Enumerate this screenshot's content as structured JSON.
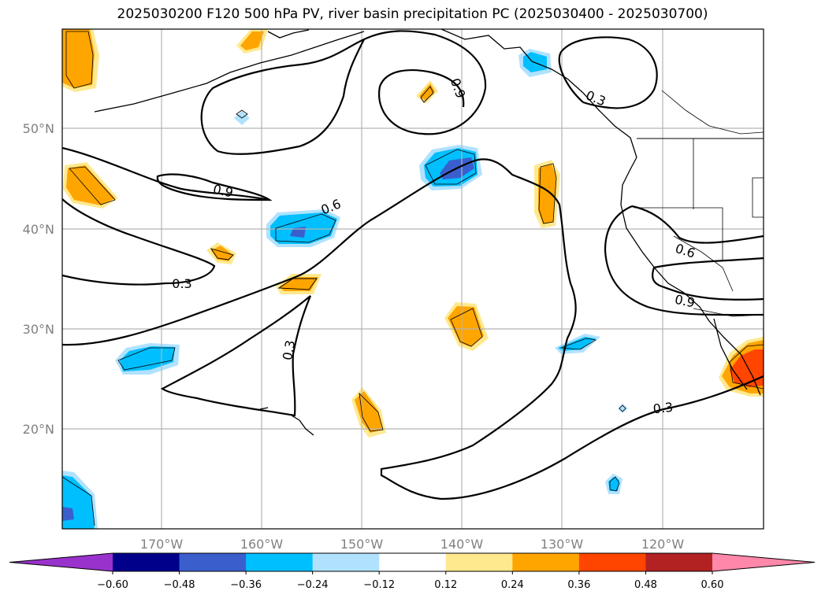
{
  "title": "2025030200 F120 500 hPa PV, river basin precipitation PC (2025030400 - 2025030700)",
  "latitude_labels": [
    "50°N",
    "40°N",
    "30°N",
    "20°N"
  ],
  "longitude_labels": [
    "170°W",
    "160°W",
    "150°W",
    "140°W",
    "130°W",
    "120°W"
  ],
  "pv_contour_labels": [
    "0.9",
    "0.3",
    "0.9",
    "0.6",
    "0.3",
    "0.3",
    "0.6",
    "0.9",
    "0.3"
  ],
  "colorbar": {
    "tick_labels": [
      "−0.60",
      "−0.48",
      "−0.36",
      "−0.24",
      "−0.12",
      "0.12",
      "0.24",
      "0.36",
      "0.48",
      "0.60"
    ],
    "colors": [
      "#9932cc",
      "#00008b",
      "#3a5fcd",
      "#00bfff",
      "#b0e2ff",
      "#ffffff",
      "#ffe98f",
      "#ffa500",
      "#ff4500",
      "#b22222",
      "#ff88aa"
    ]
  },
  "fill_colors": {
    "pos_light": "#ffe98f",
    "pos_mid": "#ffa500",
    "pos_strong": "#ff4500",
    "neg_light": "#b0e2ff",
    "neg_mid": "#00bfff",
    "neg_strong": "#3a5fcd"
  }
}
